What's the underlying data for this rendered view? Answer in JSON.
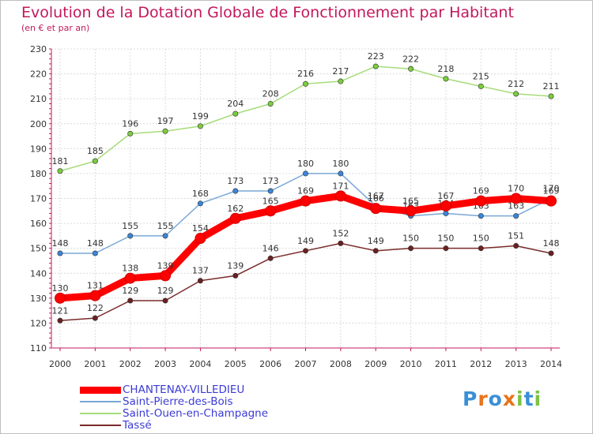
{
  "title": "Evolution de la Dotation Globale de Fonctionnement par Habitant",
  "subtitle": "(en € et par an)",
  "logo": {
    "text": "Proxiti",
    "letters": [
      {
        "char": "P",
        "color": "#3a8fd6"
      },
      {
        "char": "r",
        "color": "#e8731a"
      },
      {
        "char": "o",
        "color": "#3a8fd6"
      },
      {
        "char": "x",
        "color": "#e8731a"
      },
      {
        "char": "i",
        "color": "#7cc243"
      },
      {
        "char": "t",
        "color": "#3a8fd6"
      },
      {
        "char": "i",
        "color": "#7cc243"
      }
    ]
  },
  "chart_data": {
    "type": "line",
    "title": "Evolution de la Dotation Globale de Fonctionnement par Habitant",
    "subtitle": "(en € et par an)",
    "x": [
      "2000",
      "2001",
      "2002",
      "2003",
      "2004",
      "2005",
      "2006",
      "2007",
      "2008",
      "2009",
      "2010",
      "2011",
      "2012",
      "2013",
      "2014"
    ],
    "ylim": [
      110,
      230
    ],
    "yticks": [
      110,
      120,
      130,
      140,
      150,
      160,
      170,
      180,
      190,
      200,
      210,
      220,
      230
    ],
    "grid": true,
    "legend_position": "bottom-left",
    "series": [
      {
        "name": "CHANTENAY-VILLEDIEU",
        "color": "#ff0000",
        "marker_color": "#ff0000",
        "emphasis": true,
        "values": [
          130,
          131,
          138,
          139,
          154,
          162,
          165,
          169,
          171,
          166,
          165,
          167,
          169,
          170,
          169
        ]
      },
      {
        "name": "Saint-Pierre-des-Bois",
        "color": "#7aa7d6",
        "marker_color": "#3a86d8",
        "emphasis": false,
        "values": [
          148,
          148,
          155,
          155,
          168,
          173,
          173,
          180,
          180,
          167,
          163,
          164,
          163,
          163,
          170
        ]
      },
      {
        "name": "Saint-Ouen-en-Champagne",
        "color": "#a6dc7a",
        "marker_color": "#7ccd3c",
        "emphasis": false,
        "values": [
          181,
          185,
          196,
          197,
          199,
          204,
          208,
          216,
          217,
          223,
          222,
          218,
          215,
          212,
          211
        ]
      },
      {
        "name": "Tassé",
        "color": "#7a2a2a",
        "marker_color": "#6b2020",
        "emphasis": false,
        "values": [
          121,
          122,
          129,
          129,
          137,
          139,
          146,
          149,
          152,
          149,
          150,
          150,
          150,
          151,
          148
        ]
      }
    ]
  }
}
